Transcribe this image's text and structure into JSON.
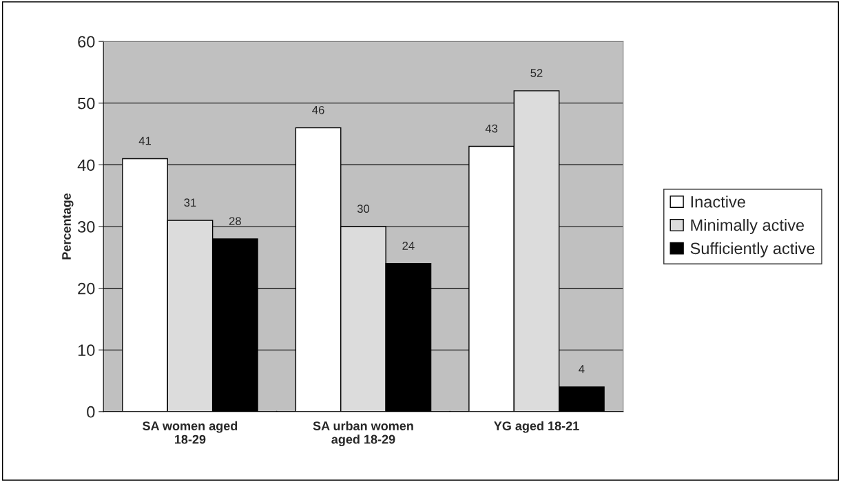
{
  "chart_data": {
    "type": "bar",
    "ylabel": "Percentage",
    "categories": [
      "SA women aged\n18-29",
      "SA urban women\naged 18-29",
      "YG aged 18-21"
    ],
    "series": [
      {
        "name": "Inactive",
        "color": "#ffffff",
        "values": [
          41,
          46,
          43
        ]
      },
      {
        "name": "Minimally active",
        "color": "#dcdcdc",
        "values": [
          31,
          30,
          52
        ]
      },
      {
        "name": "Sufficiently active",
        "color": "#000000",
        "values": [
          28,
          24,
          4
        ]
      }
    ],
    "ylim": [
      0,
      60
    ],
    "yticks": [
      0,
      10,
      20,
      30,
      40,
      50,
      60
    ],
    "grid": "y",
    "legend": "right",
    "data_labels": true
  }
}
